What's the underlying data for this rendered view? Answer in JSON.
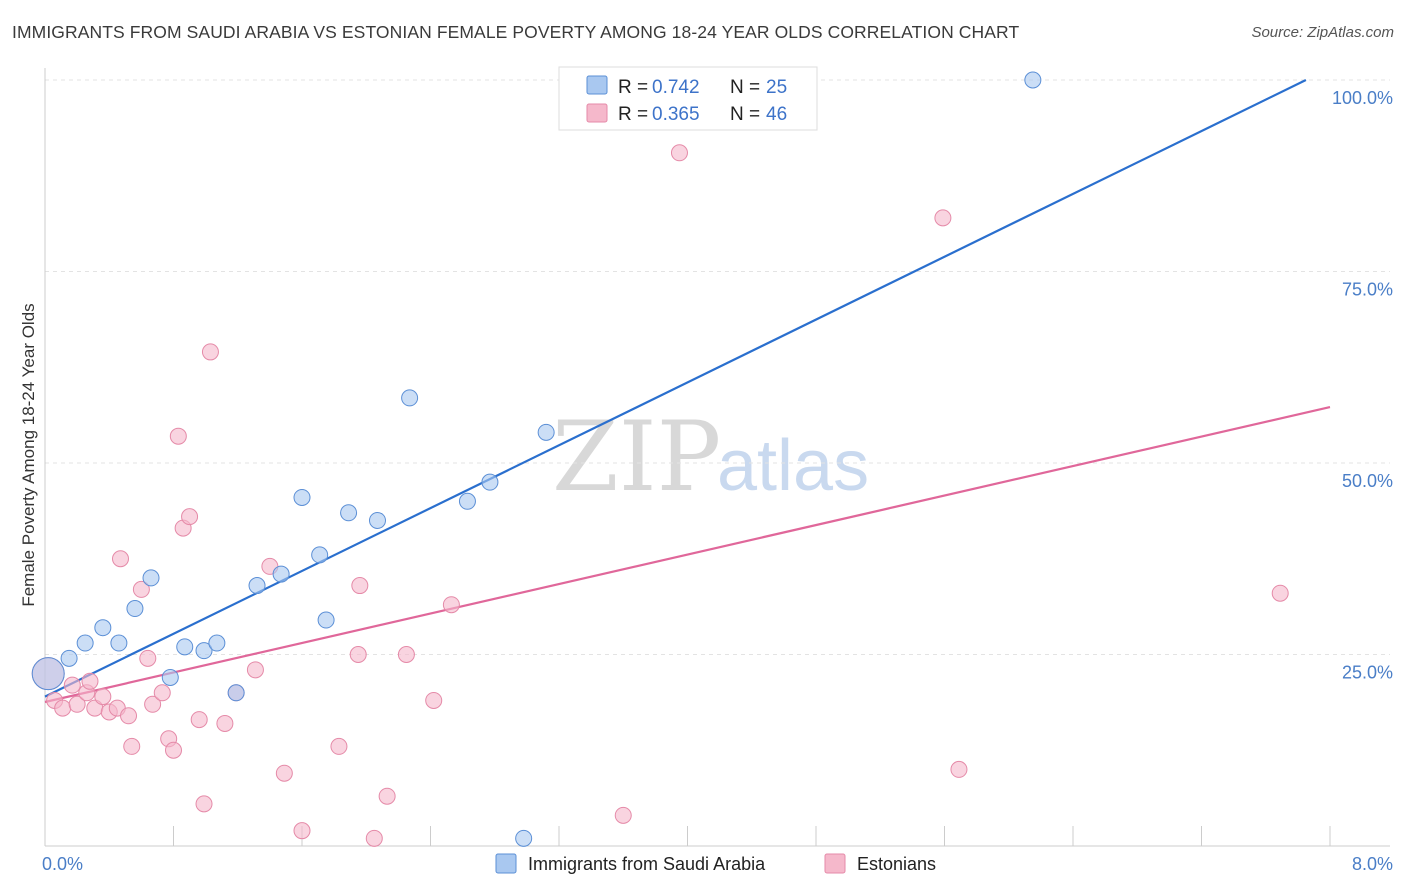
{
  "header": {
    "title": "IMMIGRANTS FROM SAUDI ARABIA VS ESTONIAN FEMALE POVERTY AMONG 18-24 YEAR OLDS CORRELATION CHART",
    "source": "Source: ZipAtlas.com"
  },
  "legend_top": {
    "rows": [
      {
        "r_label": "R = ",
        "r_value": "0.742",
        "n_label": "N = ",
        "n_value": "25",
        "color": "#a9c8f0"
      },
      {
        "r_label": "R = ",
        "r_value": "0.365",
        "n_label": "N = ",
        "n_value": "46",
        "color": "#f5b8cb"
      }
    ]
  },
  "legend_bottom": [
    {
      "label": "Immigrants from Saudi Arabia",
      "color": "#a9c8f0"
    },
    {
      "label": "Estonians",
      "color": "#f5b8cb"
    }
  ],
  "watermark": {
    "zip": "ZIP",
    "atlas": "atlas"
  },
  "chart_data": {
    "type": "scatter",
    "ylabel": "Female Poverty Among 18-24 Year Olds",
    "xlabel": "",
    "xlim": [
      0,
      8
    ],
    "ylim": [
      0,
      100
    ],
    "x_tick_labels": {
      "left": "0.0%",
      "right": "8.0%"
    },
    "y_ticks": [
      {
        "value": 25,
        "label": "25.0%"
      },
      {
        "value": 50,
        "label": "50.0%"
      },
      {
        "value": 75,
        "label": "75.0%"
      },
      {
        "value": 100,
        "label": "100.0%"
      }
    ],
    "grid": true,
    "series": [
      {
        "name": "Immigrants from Saudi Arabia",
        "color": "#a9c8f0",
        "stroke": "#5b8fd6",
        "line_color": "#2a6fce",
        "trend": {
          "x": [
            0,
            7.85
          ],
          "y": [
            19.5,
            100
          ]
        },
        "points": [
          {
            "x": 0.02,
            "y": 22.5
          },
          {
            "x": 0.15,
            "y": 24.5
          },
          {
            "x": 0.25,
            "y": 26.5
          },
          {
            "x": 0.36,
            "y": 28.5
          },
          {
            "x": 0.46,
            "y": 26.5
          },
          {
            "x": 0.56,
            "y": 31.0
          },
          {
            "x": 0.66,
            "y": 35.0
          },
          {
            "x": 0.78,
            "y": 22.0
          },
          {
            "x": 0.87,
            "y": 26.0
          },
          {
            "x": 0.99,
            "y": 25.5
          },
          {
            "x": 1.07,
            "y": 26.5
          },
          {
            "x": 1.19,
            "y": 20.0
          },
          {
            "x": 1.32,
            "y": 34.0
          },
          {
            "x": 1.47,
            "y": 35.5
          },
          {
            "x": 1.6,
            "y": 45.5
          },
          {
            "x": 1.71,
            "y": 38.0
          },
          {
            "x": 1.75,
            "y": 29.5
          },
          {
            "x": 1.89,
            "y": 43.5
          },
          {
            "x": 2.07,
            "y": 42.5
          },
          {
            "x": 2.27,
            "y": 58.5
          },
          {
            "x": 2.63,
            "y": 45.0
          },
          {
            "x": 2.77,
            "y": 47.5
          },
          {
            "x": 2.98,
            "y": 1.0
          },
          {
            "x": 3.12,
            "y": 54.0
          },
          {
            "x": 6.15,
            "y": 100.0
          }
        ]
      },
      {
        "name": "Estonians",
        "color": "#f5b8cb",
        "stroke": "#e58aa8",
        "line_color": "#e0679a",
        "trend": {
          "x": [
            0,
            8
          ],
          "y": [
            18.8,
            57.3
          ]
        },
        "points": [
          {
            "x": 0.02,
            "y": 22.5
          },
          {
            "x": 0.06,
            "y": 19.0
          },
          {
            "x": 0.11,
            "y": 18.0
          },
          {
            "x": 0.17,
            "y": 21.0
          },
          {
            "x": 0.2,
            "y": 18.5
          },
          {
            "x": 0.26,
            "y": 20.0
          },
          {
            "x": 0.28,
            "y": 21.5
          },
          {
            "x": 0.31,
            "y": 18.0
          },
          {
            "x": 0.36,
            "y": 19.5
          },
          {
            "x": 0.4,
            "y": 17.5
          },
          {
            "x": 0.45,
            "y": 18.0
          },
          {
            "x": 0.47,
            "y": 37.5
          },
          {
            "x": 0.52,
            "y": 17.0
          },
          {
            "x": 0.54,
            "y": 13.0
          },
          {
            "x": 0.6,
            "y": 33.5
          },
          {
            "x": 0.64,
            "y": 24.5
          },
          {
            "x": 0.67,
            "y": 18.5
          },
          {
            "x": 0.73,
            "y": 20.0
          },
          {
            "x": 0.77,
            "y": 14.0
          },
          {
            "x": 0.8,
            "y": 12.5
          },
          {
            "x": 0.83,
            "y": 53.5
          },
          {
            "x": 0.86,
            "y": 41.5
          },
          {
            "x": 0.9,
            "y": 43.0
          },
          {
            "x": 0.96,
            "y": 16.5
          },
          {
            "x": 0.99,
            "y": 5.5
          },
          {
            "x": 1.03,
            "y": 64.5
          },
          {
            "x": 1.12,
            "y": 16.0
          },
          {
            "x": 1.19,
            "y": 20.0
          },
          {
            "x": 1.31,
            "y": 23.0
          },
          {
            "x": 1.4,
            "y": 36.5
          },
          {
            "x": 1.49,
            "y": 9.5
          },
          {
            "x": 1.6,
            "y": 2.0
          },
          {
            "x": 1.83,
            "y": 13.0
          },
          {
            "x": 1.95,
            "y": 25.0
          },
          {
            "x": 1.96,
            "y": 34.0
          },
          {
            "x": 2.05,
            "y": 1.0
          },
          {
            "x": 2.13,
            "y": 6.5
          },
          {
            "x": 2.25,
            "y": 25.0
          },
          {
            "x": 2.42,
            "y": 19.0
          },
          {
            "x": 2.53,
            "y": 31.5
          },
          {
            "x": 3.6,
            "y": 4.0
          },
          {
            "x": 3.95,
            "y": 90.5
          },
          {
            "x": 4.4,
            "y": 100.0
          },
          {
            "x": 5.59,
            "y": 82.0
          },
          {
            "x": 5.69,
            "y": 10.0
          },
          {
            "x": 7.69,
            "y": 33.0
          }
        ]
      }
    ]
  }
}
